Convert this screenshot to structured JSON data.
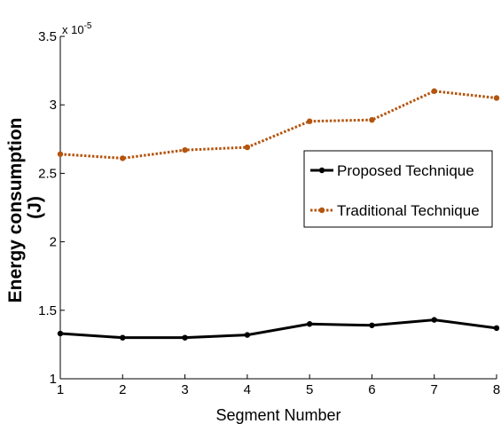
{
  "chart_data": {
    "type": "line",
    "xlabel": "Segment Number",
    "ylabel_line1": "Energy consumption",
    "ylabel_line2": "(J)",
    "y_multiplier": "x 10",
    "y_exponent": "-5",
    "xlim": [
      1,
      8
    ],
    "ylim": [
      1,
      3.5
    ],
    "x": [
      1,
      2,
      3,
      4,
      5,
      6,
      7,
      8
    ],
    "x_ticks": [
      "1",
      "2",
      "3",
      "4",
      "5",
      "6",
      "7",
      "8"
    ],
    "y_ticks": [
      1,
      1.5,
      2,
      2.5,
      3,
      3.5
    ],
    "y_tick_labels": [
      "1",
      "1.5",
      "2",
      "2.5",
      "3",
      "3.5"
    ],
    "grid": false,
    "legend_position": "right",
    "series": [
      {
        "name": "Proposed Technique",
        "color": "#000000",
        "line_style": "solid",
        "marker": "dot",
        "values": [
          1.33,
          1.3,
          1.3,
          1.32,
          1.4,
          1.39,
          1.43,
          1.37
        ]
      },
      {
        "name": "Traditional Technique",
        "color": "#b5540d",
        "line_style": "dotted",
        "marker": "dot",
        "values": [
          2.64,
          2.61,
          2.67,
          2.69,
          2.88,
          2.89,
          3.1,
          3.05
        ]
      }
    ]
  }
}
